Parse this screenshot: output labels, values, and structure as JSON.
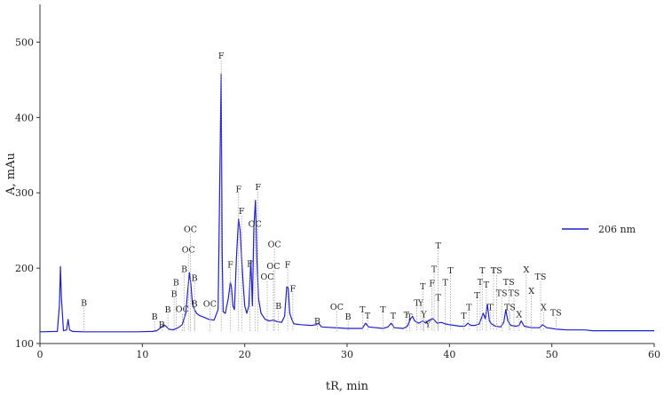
{
  "chart_data": {
    "type": "line",
    "xlabel": "tR, min",
    "ylabel": "A, mAu",
    "xlim": [
      0,
      60
    ],
    "ylim": [
      100,
      550
    ],
    "xticks": [
      0,
      10,
      20,
      30,
      40,
      50,
      60
    ],
    "yticks": [
      100,
      200,
      300,
      400,
      500
    ],
    "grid": false,
    "legend_position": "right",
    "series": [
      {
        "name": "206 nm",
        "color": "#1f1fd6",
        "baseline": 115.5,
        "x": [
          0,
          1.7,
          1.9,
          2.0,
          2.1,
          2.3,
          2.6,
          2.75,
          2.9,
          3.2,
          4.2,
          9.5,
          11.0,
          11.4,
          11.8,
          12.1,
          12.3,
          12.6,
          13.0,
          13.5,
          13.9,
          14.1,
          14.25,
          14.4,
          14.6,
          14.75,
          14.9,
          15.1,
          15.3,
          15.6,
          16.0,
          16.5,
          17.0,
          17.4,
          17.6,
          17.7,
          17.8,
          17.9,
          18.1,
          18.4,
          18.6,
          18.7,
          18.85,
          19.0,
          19.2,
          19.4,
          19.55,
          19.7,
          19.85,
          20.0,
          20.2,
          20.4,
          20.6,
          20.75,
          20.9,
          21.05,
          21.2,
          21.35,
          21.6,
          22.0,
          22.4,
          22.8,
          23.2,
          23.6,
          23.9,
          24.1,
          24.25,
          24.4,
          24.6,
          24.8,
          25.5,
          26.5,
          27.0,
          27.2,
          27.5,
          30.0,
          31.5,
          31.8,
          32.1,
          33.5,
          34.0,
          34.3,
          34.6,
          35.5,
          35.9,
          36.2,
          36.4,
          36.6,
          37.0,
          37.4,
          37.7,
          38.0,
          38.4,
          38.8,
          39.2,
          39.6,
          40.0,
          40.5,
          41.0,
          41.5,
          41.8,
          42.1,
          42.5,
          42.9,
          43.1,
          43.3,
          43.5,
          43.7,
          43.9,
          44.1,
          44.5,
          45.0,
          45.3,
          45.5,
          45.7,
          46.0,
          46.5,
          46.8,
          47.0,
          47.3,
          48.0,
          48.8,
          49.1,
          49.5,
          50.5,
          51.5,
          52.5,
          53.2,
          54.0,
          60.0
        ],
        "y": [
          115.5,
          116,
          150,
          202,
          160,
          117,
          118,
          132,
          118,
          116,
          115.5,
          115.5,
          116,
          117,
          121,
          125,
          123,
          119,
          118,
          121,
          125,
          134,
          140,
          165,
          194,
          178,
          152,
          145,
          140,
          137,
          135,
          132,
          131,
          145,
          355,
          458,
          215,
          142,
          140,
          160,
          181,
          175,
          150,
          145,
          215,
          265,
          250,
          213,
          180,
          150,
          140,
          150,
          210,
          150,
          255,
          290,
          210,
          160,
          140,
          132,
          130,
          131,
          129,
          128,
          136,
          175,
          174,
          140,
          132,
          126,
          125,
          124,
          125,
          127,
          122,
          120,
          120,
          127,
          122,
          120,
          122,
          127,
          121,
          120,
          123,
          133,
          136,
          130,
          127,
          130,
          127,
          131,
          133,
          127,
          128,
          126,
          125,
          124,
          123,
          123,
          127,
          124,
          124,
          126,
          133,
          140,
          133,
          152,
          130,
          126,
          123,
          122,
          128,
          145,
          130,
          124,
          123,
          124,
          130,
          123,
          121,
          121,
          125,
          121,
          119,
          118,
          118,
          118,
          117,
          117
        ]
      }
    ],
    "peak_labels": [
      {
        "text": "B",
        "x": 4.3,
        "y": 150
      },
      {
        "text": "B",
        "x": 11.2,
        "y": 132
      },
      {
        "text": "B",
        "x": 11.9,
        "y": 121
      },
      {
        "text": "B",
        "x": 12.5,
        "y": 141
      },
      {
        "text": "B",
        "x": 13.1,
        "y": 162
      },
      {
        "text": "B",
        "x": 13.3,
        "y": 177
      },
      {
        "text": "OC",
        "x": 13.9,
        "y": 142
      },
      {
        "text": "B",
        "x": 14.1,
        "y": 195
      },
      {
        "text": "OC",
        "x": 14.5,
        "y": 221
      },
      {
        "text": "OC",
        "x": 14.7,
        "y": 248
      },
      {
        "text": "B",
        "x": 15.1,
        "y": 183
      },
      {
        "text": "B",
        "x": 15.1,
        "y": 149
      },
      {
        "text": "OC",
        "x": 16.6,
        "y": 149
      },
      {
        "text": "F",
        "x": 17.7,
        "y": 478
      },
      {
        "text": "F",
        "x": 18.6,
        "y": 201
      },
      {
        "text": "F",
        "x": 19.4,
        "y": 301
      },
      {
        "text": "F",
        "x": 19.7,
        "y": 272
      },
      {
        "text": "F",
        "x": 20.5,
        "y": 202
      },
      {
        "text": "OC",
        "x": 21.0,
        "y": 255
      },
      {
        "text": "F",
        "x": 21.3,
        "y": 304
      },
      {
        "text": "OC",
        "x": 22.2,
        "y": 185
      },
      {
        "text": "OC",
        "x": 22.9,
        "y": 228
      },
      {
        "text": "OC",
        "x": 22.8,
        "y": 199
      },
      {
        "text": "B",
        "x": 23.3,
        "y": 146
      },
      {
        "text": "F",
        "x": 24.2,
        "y": 201
      },
      {
        "text": "F",
        "x": 24.7,
        "y": 169
      },
      {
        "text": "B",
        "x": 27.1,
        "y": 126
      },
      {
        "text": "OC",
        "x": 29.0,
        "y": 145
      },
      {
        "text": "B",
        "x": 30.1,
        "y": 132
      },
      {
        "text": "T",
        "x": 31.5,
        "y": 141
      },
      {
        "text": "T",
        "x": 32.0,
        "y": 133
      },
      {
        "text": "T",
        "x": 33.5,
        "y": 141
      },
      {
        "text": "T",
        "x": 34.5,
        "y": 133
      },
      {
        "text": "T",
        "x": 35.8,
        "y": 134
      },
      {
        "text": "T",
        "x": 36.1,
        "y": 131
      },
      {
        "text": "T",
        "x": 36.8,
        "y": 150
      },
      {
        "text": "Y",
        "x": 37.2,
        "y": 150
      },
      {
        "text": "T",
        "x": 37.4,
        "y": 172
      },
      {
        "text": "Y",
        "x": 37.5,
        "y": 135
      },
      {
        "text": "Y",
        "x": 37.9,
        "y": 122
      },
      {
        "text": "T",
        "x": 38.5,
        "y": 195
      },
      {
        "text": "F",
        "x": 38.3,
        "y": 176
      },
      {
        "text": "T",
        "x": 38.9,
        "y": 226
      },
      {
        "text": "T",
        "x": 38.9,
        "y": 157
      },
      {
        "text": "T",
        "x": 39.6,
        "y": 177
      },
      {
        "text": "T",
        "x": 40.1,
        "y": 193
      },
      {
        "text": "T",
        "x": 41.4,
        "y": 133
      },
      {
        "text": "T",
        "x": 41.9,
        "y": 144
      },
      {
        "text": "T",
        "x": 42.7,
        "y": 160
      },
      {
        "text": "T",
        "x": 43.0,
        "y": 178
      },
      {
        "text": "T",
        "x": 43.2,
        "y": 193
      },
      {
        "text": "T",
        "x": 43.6,
        "y": 174
      },
      {
        "text": "T",
        "x": 44.0,
        "y": 144
      },
      {
        "text": "T",
        "x": 44.3,
        "y": 193
      },
      {
        "text": "TS",
        "x": 44.6,
        "y": 193
      },
      {
        "text": "TS",
        "x": 45.1,
        "y": 163
      },
      {
        "text": "TS",
        "x": 45.8,
        "y": 178
      },
      {
        "text": "TS",
        "x": 46.3,
        "y": 163
      },
      {
        "text": "TS",
        "x": 45.9,
        "y": 144
      },
      {
        "text": "X",
        "x": 46.8,
        "y": 135
      },
      {
        "text": "X",
        "x": 47.5,
        "y": 194
      },
      {
        "text": "X",
        "x": 48.0,
        "y": 166
      },
      {
        "text": "TS",
        "x": 48.9,
        "y": 185
      },
      {
        "text": "X",
        "x": 49.2,
        "y": 144
      },
      {
        "text": "TS",
        "x": 50.4,
        "y": 137
      }
    ]
  }
}
